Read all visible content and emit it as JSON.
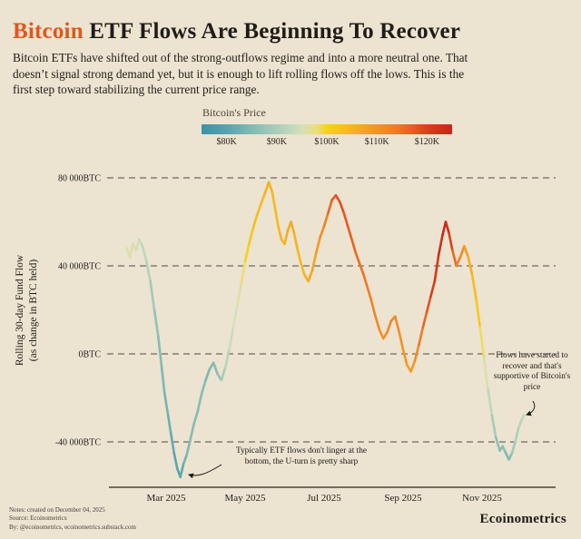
{
  "page": {
    "title": {
      "highlight": "Bitcoin",
      "rest": " ETF Flows Are Beginning To Recover"
    },
    "subtitle": "Bitcoin ETFs have shifted out of the strong-outflows regime and into a more neutral one. That doesn’t signal strong demand yet, but it is enough to lift rolling flows off the lows. This is the first step toward stabilizing the current price range.",
    "footer": {
      "notes": [
        "Notes: created on December 04, 2025",
        "Source: Ecoinometrics",
        "By: @ecoinometrics, ecoinometrics.substack.com"
      ],
      "brand": "Ecoinometrics"
    }
  },
  "colorbar": {
    "title": "Bitcoin's Price",
    "labels": [
      "$80K",
      "$90K",
      "$100K",
      "$110K",
      "$120K"
    ]
  },
  "chart_data": {
    "type": "line",
    "title": "Bitcoin ETF Flows Are Beginning To Recover",
    "ylabel_lines": [
      "Rolling 30-day Fund Flow",
      "(as change in BTC held)"
    ],
    "color_by": "Bitcoin's Price (USD)",
    "x_ticks": [
      {
        "m": 3,
        "label": "Mar 2025"
      },
      {
        "m": 5,
        "label": "May 2025"
      },
      {
        "m": 7,
        "label": "Jul 2025"
      },
      {
        "m": 9,
        "label": "Sep 2025"
      },
      {
        "m": 11,
        "label": "Nov 2025"
      }
    ],
    "y_ticks": [
      {
        "v": 80000,
        "label": "80 000BTC"
      },
      {
        "v": 40000,
        "label": "40 000BTC"
      },
      {
        "v": 0,
        "label": "0BTC"
      },
      {
        "v": -40000,
        "label": "-40 000BTC"
      }
    ],
    "ylim": [
      -62000,
      86000
    ],
    "x_domain_months": [
      2.0,
      12.1
    ],
    "grid": "dashed horizontal",
    "price_colormap": [
      [
        75,
        "#3d92a6"
      ],
      [
        80,
        "#57a3ae"
      ],
      [
        85,
        "#82bab3"
      ],
      [
        90,
        "#a9ceba"
      ],
      [
        95,
        "#d3e0ba"
      ],
      [
        98,
        "#eedd7a"
      ],
      [
        100,
        "#f6d319"
      ],
      [
        104,
        "#f6bb1e"
      ],
      [
        108,
        "#f4a023"
      ],
      [
        110,
        "#f29325"
      ],
      [
        114,
        "#ee7b26"
      ],
      [
        118,
        "#e25420"
      ],
      [
        120,
        "#da3f1c"
      ],
      [
        125,
        "#c8241a"
      ]
    ],
    "series": [
      {
        "name": "rolling_30d_fund_flow_btc",
        "colored_by": "btc_price_usd_thousands",
        "points": [
          [
            2.0,
            48000,
            95
          ],
          [
            2.08,
            44000,
            96
          ],
          [
            2.16,
            50000,
            96
          ],
          [
            2.24,
            47000,
            95
          ],
          [
            2.32,
            52000,
            94
          ],
          [
            2.4,
            49000,
            93
          ],
          [
            2.5,
            42000,
            92
          ],
          [
            2.6,
            33000,
            90
          ],
          [
            2.7,
            20000,
            88
          ],
          [
            2.8,
            8000,
            86
          ],
          [
            2.88,
            -5000,
            85
          ],
          [
            2.96,
            -18000,
            84
          ],
          [
            3.05,
            -28000,
            83
          ],
          [
            3.12,
            -36000,
            82
          ],
          [
            3.2,
            -45000,
            81
          ],
          [
            3.28,
            -52000,
            80
          ],
          [
            3.36,
            -56000,
            80
          ],
          [
            3.44,
            -50000,
            82
          ],
          [
            3.52,
            -46000,
            84
          ],
          [
            3.6,
            -40000,
            85
          ],
          [
            3.7,
            -32000,
            86
          ],
          [
            3.8,
            -26000,
            85
          ],
          [
            3.9,
            -18000,
            86
          ],
          [
            4.0,
            -12000,
            85
          ],
          [
            4.1,
            -7000,
            84
          ],
          [
            4.2,
            -4000,
            85
          ],
          [
            4.3,
            -9000,
            86
          ],
          [
            4.4,
            -12000,
            88
          ],
          [
            4.5,
            -6000,
            91
          ],
          [
            4.6,
            2000,
            93
          ],
          [
            4.7,
            12000,
            95
          ],
          [
            4.8,
            22000,
            95
          ],
          [
            4.9,
            32000,
            97
          ],
          [
            5.0,
            42000,
            99
          ],
          [
            5.1,
            50000,
            101
          ],
          [
            5.2,
            57000,
            103
          ],
          [
            5.3,
            63000,
            104
          ],
          [
            5.4,
            68000,
            104
          ],
          [
            5.5,
            73000,
            105
          ],
          [
            5.6,
            78000,
            106
          ],
          [
            5.68,
            74000,
            105
          ],
          [
            5.76,
            66000,
            104
          ],
          [
            5.84,
            58000,
            104
          ],
          [
            5.92,
            52000,
            105
          ],
          [
            6.0,
            50000,
            105
          ],
          [
            6.08,
            56000,
            106
          ],
          [
            6.16,
            60000,
            107
          ],
          [
            6.24,
            55000,
            106
          ],
          [
            6.32,
            48000,
            105
          ],
          [
            6.4,
            42000,
            104
          ],
          [
            6.5,
            36000,
            105
          ],
          [
            6.6,
            33000,
            106
          ],
          [
            6.7,
            38000,
            107
          ],
          [
            6.8,
            46000,
            108
          ],
          [
            6.9,
            53000,
            110
          ],
          [
            7.0,
            58000,
            112
          ],
          [
            7.1,
            64000,
            115
          ],
          [
            7.2,
            70000,
            117
          ],
          [
            7.3,
            72000,
            118
          ],
          [
            7.4,
            69000,
            119
          ],
          [
            7.5,
            64000,
            118
          ],
          [
            7.6,
            58000,
            117
          ],
          [
            7.7,
            52000,
            117
          ],
          [
            7.8,
            46000,
            116
          ],
          [
            7.9,
            41000,
            115
          ],
          [
            8.0,
            36000,
            115
          ],
          [
            8.1,
            30000,
            114
          ],
          [
            8.2,
            24000,
            113
          ],
          [
            8.3,
            17000,
            112
          ],
          [
            8.4,
            11000,
            111
          ],
          [
            8.5,
            7000,
            110
          ],
          [
            8.6,
            10000,
            111
          ],
          [
            8.7,
            15000,
            112
          ],
          [
            8.8,
            17000,
            112
          ],
          [
            8.9,
            10000,
            111
          ],
          [
            9.0,
            2000,
            110
          ],
          [
            9.1,
            -5000,
            109
          ],
          [
            9.2,
            -8000,
            108
          ],
          [
            9.3,
            -3000,
            110
          ],
          [
            9.4,
            4000,
            113
          ],
          [
            9.5,
            12000,
            115
          ],
          [
            9.6,
            19000,
            117
          ],
          [
            9.7,
            26000,
            119
          ],
          [
            9.8,
            33000,
            121
          ],
          [
            9.9,
            45000,
            122
          ],
          [
            10.0,
            54000,
            124
          ],
          [
            10.08,
            60000,
            125
          ],
          [
            10.16,
            55000,
            122
          ],
          [
            10.25,
            47000,
            118
          ],
          [
            10.35,
            40000,
            114
          ],
          [
            10.45,
            44000,
            112
          ],
          [
            10.55,
            49000,
            110
          ],
          [
            10.65,
            44000,
            107
          ],
          [
            10.75,
            36000,
            105
          ],
          [
            10.85,
            25000,
            103
          ],
          [
            10.95,
            12000,
            100
          ],
          [
            11.05,
            -2000,
            97
          ],
          [
            11.15,
            -16000,
            94
          ],
          [
            11.25,
            -28000,
            91
          ],
          [
            11.35,
            -38000,
            88
          ],
          [
            11.45,
            -44000,
            85
          ],
          [
            11.52,
            -42000,
            87
          ],
          [
            11.6,
            -45000,
            85
          ],
          [
            11.68,
            -48000,
            84
          ],
          [
            11.76,
            -45000,
            88
          ],
          [
            11.84,
            -40000,
            90
          ],
          [
            11.92,
            -34000,
            91
          ],
          [
            12.0,
            -30000,
            92
          ],
          [
            12.06,
            -28000,
            93
          ]
        ]
      }
    ],
    "annotations": [
      {
        "text": "Typically ETF flows don't linger at the bottom, the U-turn is pretty sharp"
      },
      {
        "text": "Flows have started to recover and that's supportive of Bitcoin's price"
      }
    ]
  }
}
